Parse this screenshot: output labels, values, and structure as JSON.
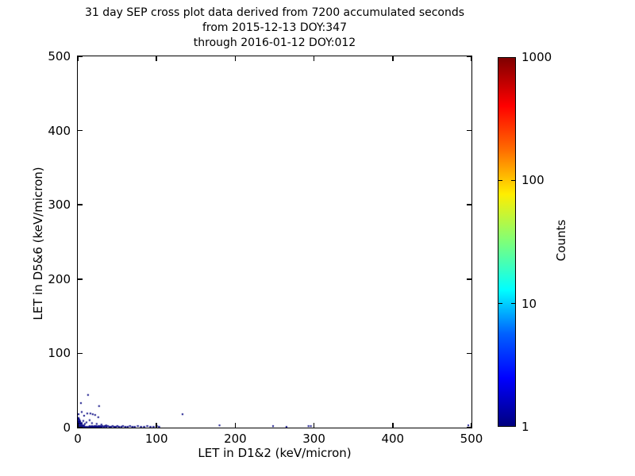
{
  "chart_data": {
    "type": "scatter",
    "title_lines": [
      "31 day SEP cross plot data derived from 7200 accumulated seconds",
      "from 2015-12-13 DOY:347",
      "through 2016-01-12 DOY:012"
    ],
    "xlabel": "LET in D1&2 (keV/micron)",
    "ylabel": "LET in D5&6 (keV/micron)",
    "xlim": [
      0,
      500
    ],
    "ylim": [
      0,
      500
    ],
    "xticks": [
      0,
      100,
      200,
      300,
      400,
      500
    ],
    "yticks": [
      0,
      100,
      200,
      300,
      400,
      500
    ],
    "grid": false,
    "point_color": "#00007f",
    "wedge_rows": [
      {
        "x0": 0,
        "x1": 13,
        "y0": 0,
        "y1": 2
      },
      {
        "x0": 0,
        "x1": 9,
        "y0": 2,
        "y1": 4
      },
      {
        "x0": 0,
        "x1": 6,
        "y0": 4,
        "y1": 7
      },
      {
        "x0": 0,
        "x1": 4,
        "y0": 7,
        "y1": 10
      },
      {
        "x0": 0,
        "x1": 2,
        "y0": 10,
        "y1": 14
      }
    ],
    "band_points": [
      [
        14,
        1
      ],
      [
        15,
        2
      ],
      [
        16,
        1
      ],
      [
        17,
        1
      ],
      [
        18,
        2
      ],
      [
        19,
        1
      ],
      [
        20,
        1
      ],
      [
        21,
        2
      ],
      [
        22,
        1
      ],
      [
        23,
        2
      ],
      [
        24,
        1
      ],
      [
        25,
        1
      ],
      [
        26,
        2
      ],
      [
        27,
        1
      ],
      [
        28,
        2
      ],
      [
        29,
        1
      ],
      [
        30,
        1
      ],
      [
        31,
        2
      ],
      [
        33,
        1
      ],
      [
        34,
        2
      ],
      [
        36,
        1
      ],
      [
        38,
        2
      ],
      [
        40,
        1
      ],
      [
        42,
        1
      ],
      [
        44,
        2
      ],
      [
        46,
        1
      ],
      [
        48,
        1
      ],
      [
        50,
        2
      ],
      [
        52,
        1
      ],
      [
        55,
        1
      ],
      [
        57,
        2
      ],
      [
        60,
        1
      ],
      [
        63,
        1
      ],
      [
        66,
        2
      ],
      [
        69,
        1
      ],
      [
        72,
        1
      ],
      [
        76,
        2
      ],
      [
        80,
        1
      ],
      [
        84,
        1
      ],
      [
        88,
        2
      ],
      [
        92,
        1
      ],
      [
        96,
        1
      ],
      [
        100,
        2
      ],
      [
        103,
        1
      ]
    ],
    "points": [
      [
        13,
        44
      ],
      [
        4,
        33
      ],
      [
        27,
        29
      ],
      [
        5,
        21
      ],
      [
        12,
        19
      ],
      [
        16,
        19
      ],
      [
        19,
        18
      ],
      [
        22,
        17
      ],
      [
        8,
        16
      ],
      [
        1,
        18
      ],
      [
        26,
        14
      ],
      [
        15,
        10
      ],
      [
        2,
        11
      ],
      [
        3,
        8
      ],
      [
        1,
        7
      ],
      [
        1,
        13
      ],
      [
        5,
        6
      ],
      [
        9,
        5
      ],
      [
        7,
        9
      ],
      [
        11,
        7
      ],
      [
        18,
        6
      ],
      [
        24,
        5
      ],
      [
        30,
        4
      ],
      [
        36,
        3
      ],
      [
        133,
        18
      ],
      [
        180,
        3
      ],
      [
        248,
        2
      ],
      [
        265,
        1
      ],
      [
        293,
        2
      ],
      [
        296,
        2
      ],
      [
        496,
        3
      ]
    ],
    "colorbar": {
      "label": "Counts",
      "scale": "log",
      "tick_labels": [
        "1000",
        "100",
        "10",
        "1"
      ],
      "colormap": "jet",
      "gradient_positions": [
        0,
        13,
        25,
        37,
        50,
        63,
        75,
        87,
        100
      ],
      "gradient_colors": [
        "#7f0000",
        "#ff0000",
        "#ff6d00",
        "#ffee00",
        "#7dff7a",
        "#00ffff",
        "#0060ff",
        "#0000ff",
        "#00007f"
      ]
    }
  }
}
